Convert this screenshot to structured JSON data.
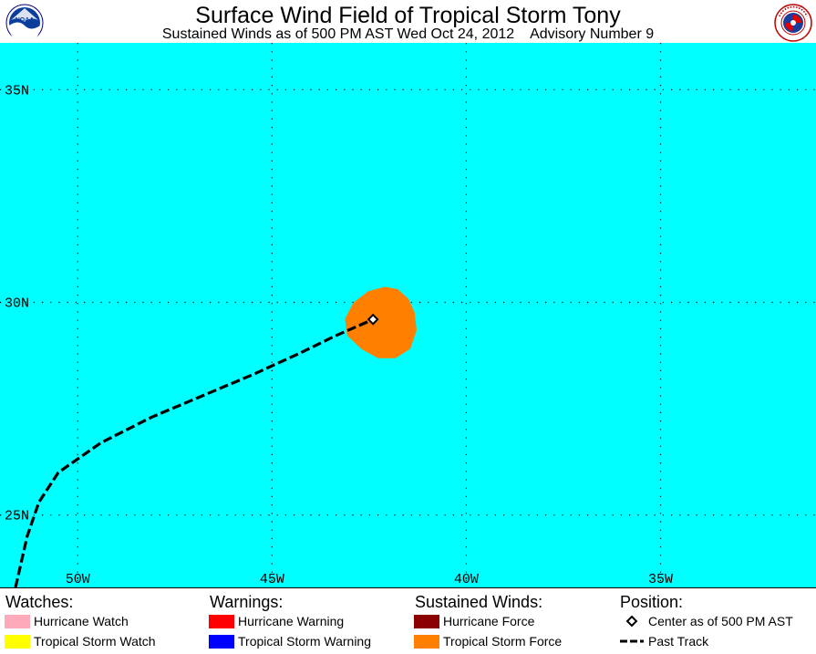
{
  "header": {
    "title": "Surface Wind Field of Tropical Storm Tony",
    "subtitle": "Sustained Winds as of 500 PM AST Wed Oct 24, 2012    Advisory Number 9"
  },
  "map": {
    "ocean_color": "#00ffff",
    "lon_range": [
      -52,
      -31
    ],
    "lat_range": [
      23.3,
      36.1
    ],
    "grid_lons": [
      -50,
      -45,
      -40,
      -35
    ],
    "grid_lats": [
      25,
      30,
      35
    ],
    "lon_labels": [
      "50W",
      "45W",
      "40W",
      "35W"
    ],
    "lat_labels": [
      "25N",
      "30N",
      "35N"
    ],
    "tropical_storm_force_color": "#ff8000",
    "center": {
      "lon": -42.4,
      "lat": 29.6
    },
    "past_track": [
      [
        -51.6,
        23.3
      ],
      [
        -51.3,
        24.5
      ],
      [
        -51.0,
        25.3
      ],
      [
        -50.5,
        26.0
      ],
      [
        -49.4,
        26.7
      ],
      [
        -48.1,
        27.3
      ],
      [
        -46.8,
        27.8
      ],
      [
        -45.5,
        28.3
      ],
      [
        -44.3,
        28.8
      ],
      [
        -43.4,
        29.2
      ],
      [
        -42.4,
        29.6
      ]
    ],
    "wind_field": [
      [
        -42.1,
        30.3
      ],
      [
        -41.8,
        30.25
      ],
      [
        -41.55,
        30.05
      ],
      [
        -41.4,
        29.75
      ],
      [
        -41.35,
        29.35
      ],
      [
        -41.5,
        28.95
      ],
      [
        -41.85,
        28.75
      ],
      [
        -42.25,
        28.75
      ],
      [
        -42.65,
        28.95
      ],
      [
        -43.0,
        29.25
      ],
      [
        -43.05,
        29.6
      ],
      [
        -42.85,
        29.95
      ],
      [
        -42.5,
        30.2
      ]
    ]
  },
  "legend": {
    "watches": {
      "heading": "Watches:",
      "items": [
        {
          "label": "Hurricane Watch",
          "color": "#ffaabb"
        },
        {
          "label": "Tropical Storm Watch",
          "color": "#ffff00"
        }
      ]
    },
    "warnings": {
      "heading": "Warnings:",
      "items": [
        {
          "label": "Hurricane Warning",
          "color": "#ff0000"
        },
        {
          "label": "Tropical Storm Warning",
          "color": "#0000ff"
        }
      ]
    },
    "sustained_winds": {
      "heading": "Sustained Winds:",
      "items": [
        {
          "label": "Hurricane Force",
          "color": "#8b0000"
        },
        {
          "label": "Tropical Storm Force",
          "color": "#ff8000"
        }
      ]
    },
    "position": {
      "heading": "Position:",
      "center_label": "Center as of 500 PM AST",
      "track_label": "Past Track"
    }
  }
}
